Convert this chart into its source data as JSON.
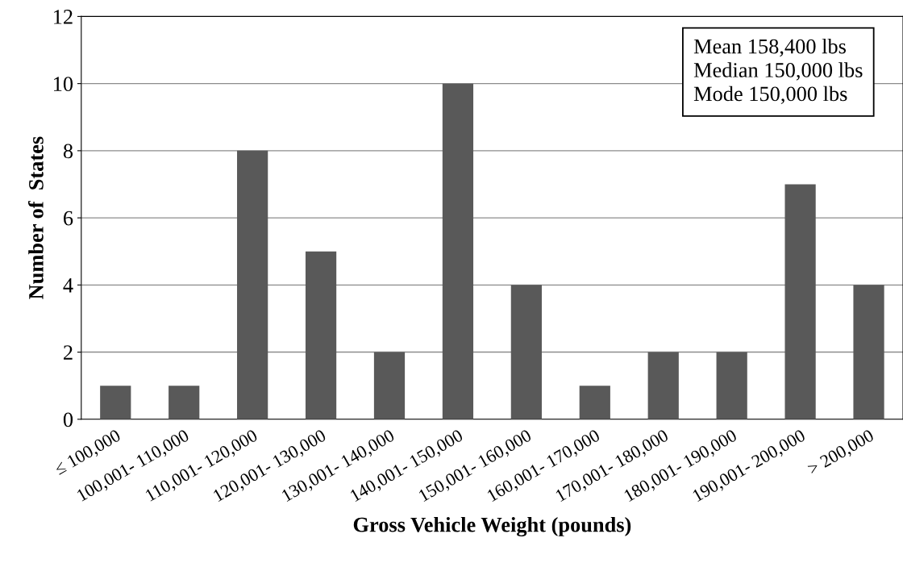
{
  "chart_data": {
    "type": "bar",
    "xlabel": "Gross Vehicle Weight (pounds)",
    "ylabel": "Number of  States",
    "categories": [
      "≤ 100,000",
      "100,001- 110,000",
      "110,001- 120,000",
      "120,001- 130,000",
      "130,001- 140,000",
      "140,001- 150,000",
      "150,001- 160,000",
      "160,001- 170,000",
      "170,001- 180,000",
      "180,001- 190,000",
      "190,001- 200,000",
      "> 200,000"
    ],
    "values": [
      1,
      1,
      8,
      5,
      2,
      10,
      4,
      1,
      2,
      2,
      7,
      4
    ],
    "color": "#595959",
    "ylim": [
      0,
      12
    ],
    "yticks": [
      0,
      2,
      4,
      6,
      8,
      10,
      12
    ],
    "grid": "y",
    "annotations": [
      "Mean 158,400 lbs",
      "Median 150,000 lbs",
      "Mode 150,000 lbs"
    ]
  }
}
